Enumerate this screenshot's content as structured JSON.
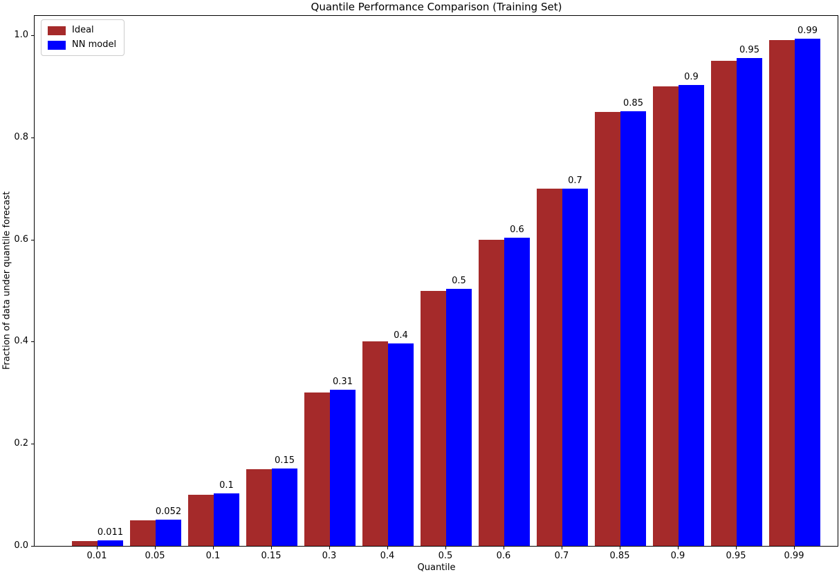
{
  "chart_data": {
    "type": "bar",
    "title": "Quantile Performance Comparison (Training Set)",
    "xlabel": "Quantile",
    "ylabel": "Fraction of data under quantile forecast",
    "categories": [
      "0.01",
      "0.05",
      "0.1",
      "0.15",
      "0.3",
      "0.4",
      "0.5",
      "0.6",
      "0.7",
      "0.85",
      "0.9",
      "0.95",
      "0.99"
    ],
    "series": [
      {
        "name": "Ideal",
        "color": "#a52a2a",
        "values": [
          0.01,
          0.05,
          0.1,
          0.15,
          0.3,
          0.4,
          0.5,
          0.6,
          0.7,
          0.85,
          0.9,
          0.95,
          0.99
        ]
      },
      {
        "name": "NN model",
        "color": "#0000ff",
        "values": [
          0.011,
          0.052,
          0.103,
          0.152,
          0.306,
          0.397,
          0.503,
          0.604,
          0.7,
          0.851,
          0.903,
          0.955,
          0.993
        ],
        "labels": [
          "0.011",
          "0.052",
          "0.1",
          "0.15",
          "0.31",
          "0.4",
          "0.5",
          "0.6",
          "0.7",
          "0.85",
          "0.9",
          "0.95",
          "0.99"
        ]
      }
    ],
    "ylim": [
      0,
      1.04
    ],
    "yticks": [
      0.0,
      0.2,
      0.4,
      0.6,
      0.8,
      1.0
    ],
    "ytick_labels": [
      "0.0",
      "0.2",
      "0.4",
      "0.6",
      "0.8",
      "1.0"
    ],
    "legend_position": "upper left",
    "grid": false
  }
}
